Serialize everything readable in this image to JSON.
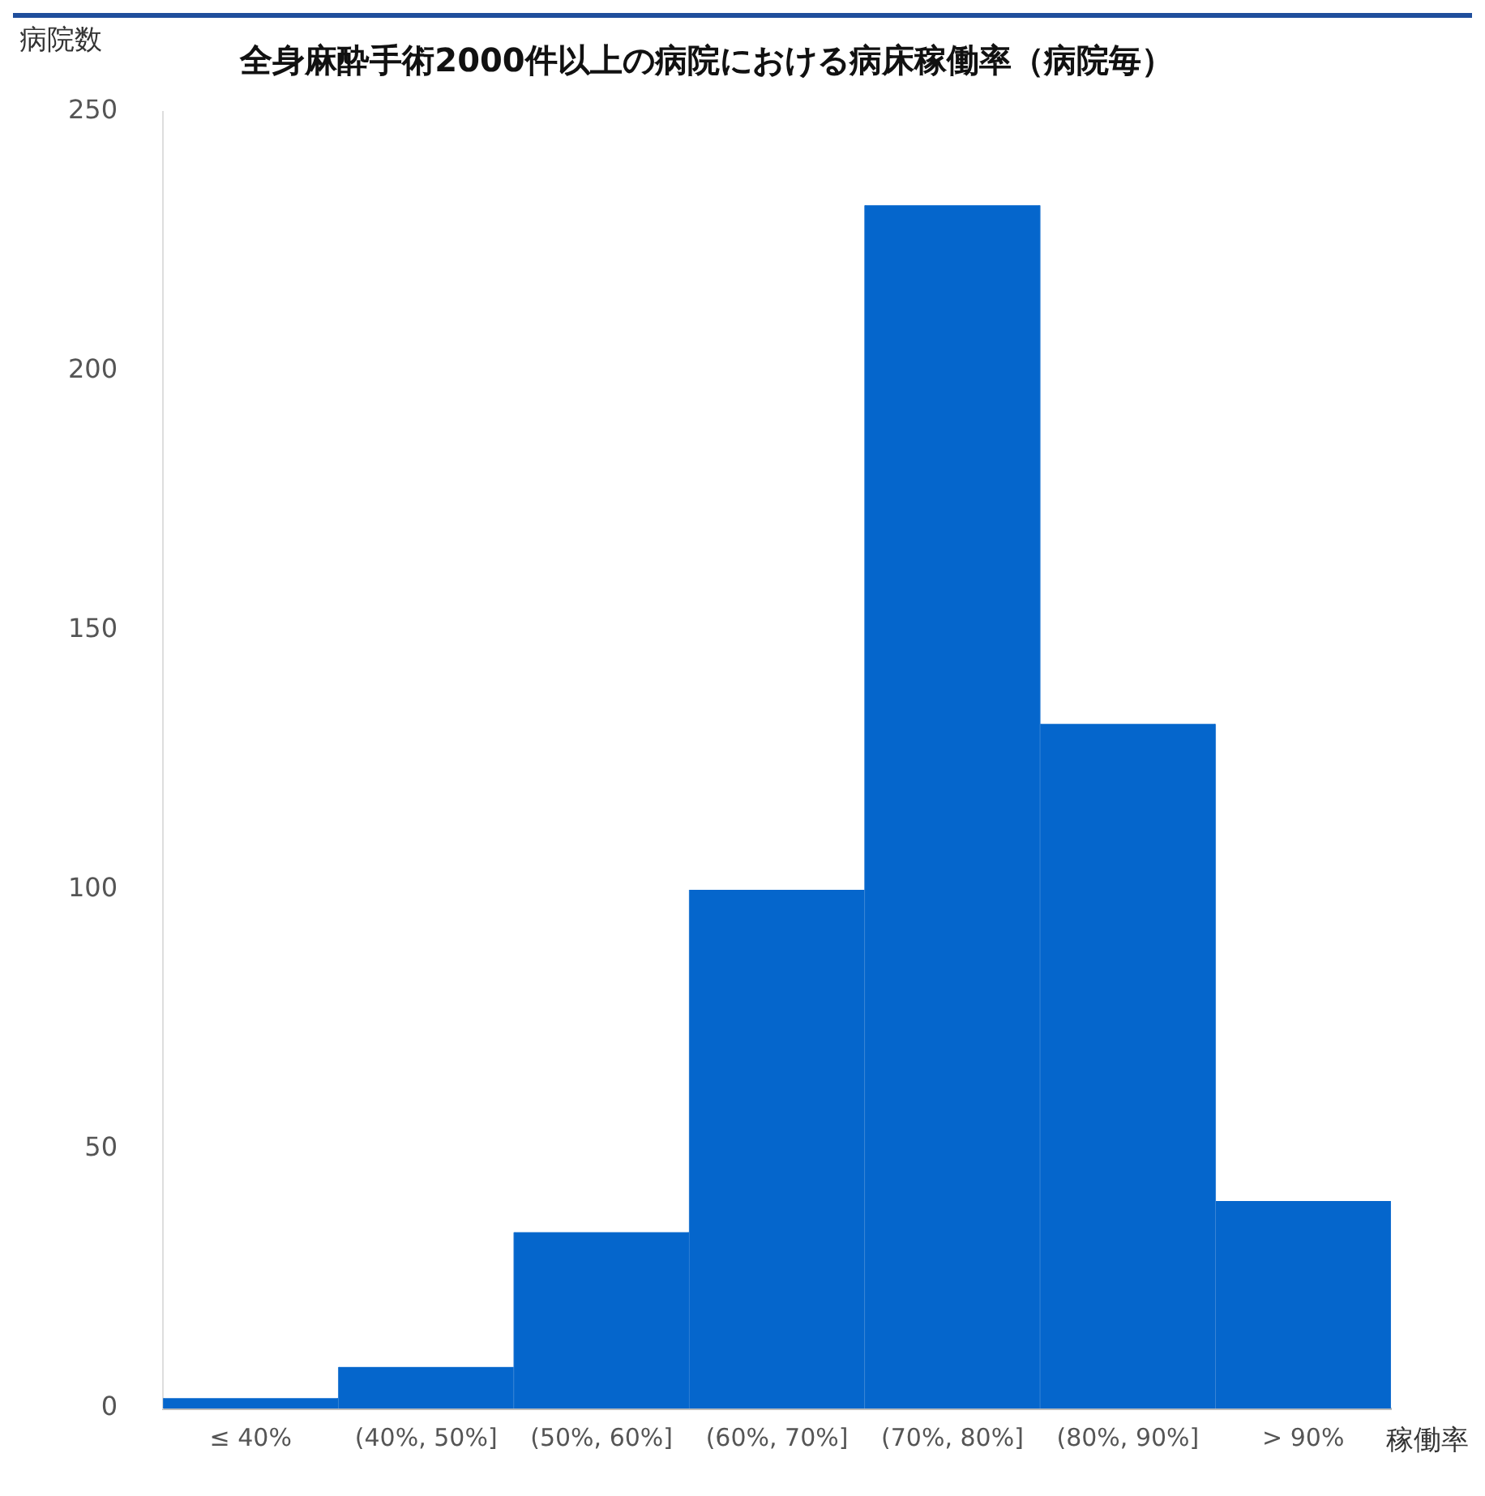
{
  "chart_data": {
    "type": "bar",
    "title": "全身麻酔手術2000件以上の病院における病床稼働率（病院毎）",
    "xlabel": "稼働率",
    "ylabel": "病院数",
    "categories": [
      "≤ 40%",
      "(40%, 50%]",
      "(50%, 60%]",
      "(60%, 70%]",
      "(70%, 80%]",
      "(80%, 90%]",
      "> 90%"
    ],
    "values": [
      2,
      8,
      34,
      100,
      232,
      132,
      40
    ],
    "color": "#0566cc",
    "ylim": [
      0,
      250
    ],
    "yticks": [
      0,
      50,
      100,
      150,
      200,
      250
    ],
    "grid": false,
    "legend": false
  }
}
